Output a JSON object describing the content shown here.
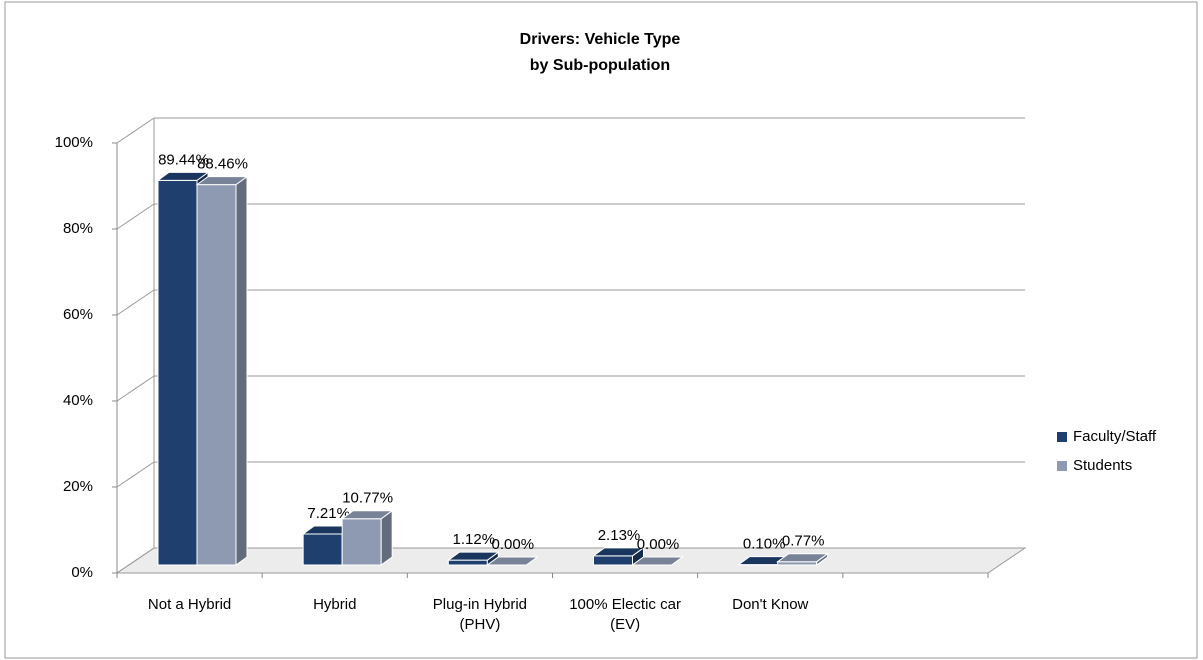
{
  "chart_data": {
    "type": "bar3d",
    "title": "Drivers: Vehicle Type",
    "subtitle": "by Sub-population",
    "categories": [
      "Not a Hybrid",
      "Hybrid",
      "Plug-in Hybrid (PHV)",
      "100% Electic car (EV)",
      "Don't Know"
    ],
    "series": [
      {
        "name": "Faculty/Staff",
        "color": "#1f3f6e",
        "values": [
          89.44,
          7.21,
          1.12,
          2.13,
          0.1
        ],
        "value_labels": [
          "89.44%",
          "7.21%",
          "1.12%",
          "2.13%",
          "0.10%"
        ]
      },
      {
        "name": "Students",
        "color": "#8d9ab2",
        "values": [
          88.46,
          10.77,
          0,
          0,
          0.77
        ],
        "value_labels": [
          "88.46%",
          "10.77%",
          "0.00%",
          "0.00%",
          "0.77%"
        ]
      }
    ],
    "ylim": [
      0,
      100
    ],
    "yticks": [
      {
        "value": 0,
        "label": "0%"
      },
      {
        "value": 20,
        "label": "20%"
      },
      {
        "value": 40,
        "label": "40%"
      },
      {
        "value": 60,
        "label": "60%"
      },
      {
        "value": 80,
        "label": "80%"
      },
      {
        "value": 100,
        "label": "100%"
      }
    ],
    "grid": true,
    "legend": "right"
  }
}
